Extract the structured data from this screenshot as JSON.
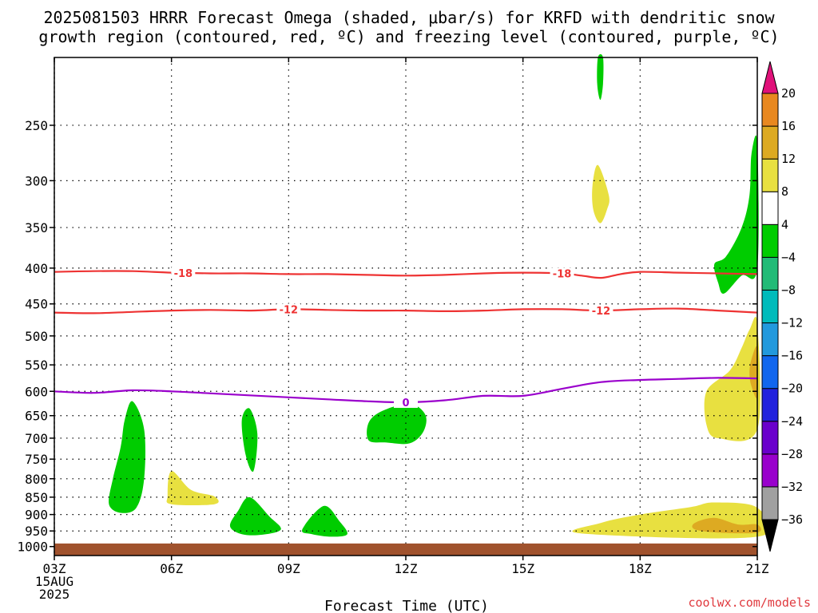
{
  "chart_data": {
    "type": "heatmap",
    "title_lines": [
      "2025081503 HRRR Forecast Omega (shaded, μbar/s) for KRFD with dendritic snow",
      "growth region (contoured, red, ºC) and freezing level (contoured, purple, ºC)"
    ],
    "xlabel": "Forecast Time (UTC)",
    "credit": "coolwx.com/models",
    "x_start_label_lines": [
      "03Z",
      "15AUG",
      "2025"
    ],
    "x_ticks": [
      {
        "hour": 3,
        "label": "03Z"
      },
      {
        "hour": 6,
        "label": "06Z"
      },
      {
        "hour": 9,
        "label": "09Z"
      },
      {
        "hour": 12,
        "label": "12Z"
      },
      {
        "hour": 15,
        "label": "15Z"
      },
      {
        "hour": 18,
        "label": "18Z"
      },
      {
        "hour": 21,
        "label": "21Z"
      }
    ],
    "xlim": [
      3,
      21
    ],
    "y_ticks": [
      250,
      300,
      350,
      400,
      450,
      500,
      550,
      600,
      650,
      700,
      750,
      800,
      850,
      900,
      950,
      1000
    ],
    "ylim_hPa": [
      200,
      1030
    ],
    "y_scale": "log",
    "grid": true,
    "ground_level_hPa": 990,
    "colorbar": {
      "levels": [
        -36,
        -32,
        -28,
        -24,
        -20,
        -16,
        -12,
        -8,
        -4,
        4,
        8,
        12,
        16,
        20
      ],
      "colors": [
        "#a0a0a0",
        "#9900cc",
        "#6a00cc",
        "#2222dd",
        "#1166ee",
        "#2299dd",
        "#00bbbb",
        "#22bb77",
        "#00cc00",
        "#ffffff",
        "#e8e040",
        "#ddaa22",
        "#e88820",
        "#ee3333",
        "#e0117a"
      ]
    },
    "contours": [
      {
        "name": "-18",
        "color": "#ee3333",
        "label": "-18",
        "label_hours": [
          6.3,
          16.0
        ],
        "points": [
          [
            3,
            405
          ],
          [
            4,
            404
          ],
          [
            5,
            404
          ],
          [
            6,
            406
          ],
          [
            7,
            407
          ],
          [
            8,
            407
          ],
          [
            9,
            408
          ],
          [
            10,
            408
          ],
          [
            11,
            409
          ],
          [
            12,
            410
          ],
          [
            13,
            409
          ],
          [
            14,
            407
          ],
          [
            15,
            406
          ],
          [
            16,
            407
          ],
          [
            16.5,
            410
          ],
          [
            17,
            413
          ],
          [
            17.5,
            408
          ],
          [
            18,
            405
          ],
          [
            19,
            406
          ],
          [
            20,
            407
          ],
          [
            21,
            408
          ]
        ]
      },
      {
        "name": "-12",
        "color": "#ee3333",
        "label": "-12",
        "label_hours": [
          9.0,
          17.0
        ],
        "points": [
          [
            3,
            463
          ],
          [
            4,
            464
          ],
          [
            5,
            462
          ],
          [
            6,
            460
          ],
          [
            7,
            459
          ],
          [
            8,
            460
          ],
          [
            9,
            458
          ],
          [
            10,
            459
          ],
          [
            11,
            460
          ],
          [
            12,
            460
          ],
          [
            13,
            461
          ],
          [
            14,
            460
          ],
          [
            15,
            458
          ],
          [
            16,
            458
          ],
          [
            17,
            460
          ],
          [
            18,
            458
          ],
          [
            19,
            457
          ],
          [
            20,
            460
          ],
          [
            21,
            463
          ]
        ]
      },
      {
        "name": "0",
        "color": "#9a00cc",
        "label": "0",
        "label_hours": [
          12.0
        ],
        "points": [
          [
            3,
            600
          ],
          [
            4,
            603
          ],
          [
            5,
            598
          ],
          [
            6,
            600
          ],
          [
            7,
            604
          ],
          [
            8,
            608
          ],
          [
            9,
            612
          ],
          [
            10,
            616
          ],
          [
            11,
            620
          ],
          [
            12,
            622
          ],
          [
            13,
            618
          ],
          [
            14,
            609
          ],
          [
            15,
            609
          ],
          [
            16,
            595
          ],
          [
            17,
            582
          ],
          [
            18,
            578
          ],
          [
            19,
            576
          ],
          [
            20,
            574
          ],
          [
            21,
            575
          ]
        ]
      }
    ],
    "omega_regions": [
      {
        "value": "-8 to -4",
        "color": "#00cc00",
        "points": [
          [
            5.0,
            620
          ],
          [
            5.3,
            680
          ],
          [
            5.3,
            800
          ],
          [
            5.1,
            880
          ],
          [
            4.7,
            895
          ],
          [
            4.4,
            870
          ],
          [
            4.5,
            800
          ],
          [
            4.7,
            720
          ],
          [
            4.8,
            660
          ]
        ]
      },
      {
        "value": "4 to 8",
        "color": "#e8e040",
        "points": [
          [
            6.0,
            780
          ],
          [
            6.5,
            830
          ],
          [
            7.1,
            848
          ],
          [
            7.1,
            870
          ],
          [
            6.0,
            870
          ],
          [
            5.9,
            845
          ]
        ]
      },
      {
        "value": "-8 to -4",
        "color": "#00cc00",
        "points": [
          [
            8.0,
            635
          ],
          [
            8.2,
            690
          ],
          [
            8.1,
            780
          ],
          [
            7.9,
            740
          ],
          [
            7.8,
            660
          ]
        ]
      },
      {
        "value": "-8 to -4",
        "color": "#00cc00",
        "points": [
          [
            8.0,
            850
          ],
          [
            8.5,
            905
          ],
          [
            8.8,
            945
          ],
          [
            8.3,
            962
          ],
          [
            7.8,
            960
          ],
          [
            7.5,
            935
          ],
          [
            7.7,
            890
          ]
        ]
      },
      {
        "value": "-8 to -4",
        "color": "#00cc00",
        "points": [
          [
            9.9,
            875
          ],
          [
            10.3,
            920
          ],
          [
            10.5,
            960
          ],
          [
            10.1,
            968
          ],
          [
            9.6,
            960
          ],
          [
            9.35,
            945
          ]
        ]
      },
      {
        "value": "-8 to -4",
        "color": "#00cc00",
        "points": [
          [
            12.1,
            625
          ],
          [
            12.5,
            648
          ],
          [
            12.45,
            685
          ],
          [
            12.1,
            712
          ],
          [
            11.5,
            710
          ],
          [
            11.05,
            705
          ],
          [
            11.05,
            665
          ],
          [
            11.4,
            640
          ]
        ]
      },
      {
        "value": "-8 to -4",
        "color": "#00cc00",
        "points": [
          [
            16.92,
            200
          ],
          [
            17.05,
            200
          ],
          [
            17.05,
            218
          ],
          [
            16.98,
            230
          ],
          [
            16.9,
            218
          ]
        ]
      },
      {
        "value": "4 to 8",
        "color": "#e8e040",
        "points": [
          [
            16.92,
            285
          ],
          [
            17.2,
            315
          ],
          [
            17.15,
            330
          ],
          [
            16.98,
            345
          ],
          [
            16.8,
            330
          ],
          [
            16.78,
            305
          ]
        ]
      },
      {
        "value": "-8 to -4",
        "color": "#00cc00",
        "points": [
          [
            20.85,
            275
          ],
          [
            21,
            265
          ],
          [
            21,
            400
          ],
          [
            20.6,
            410
          ],
          [
            20.15,
            435
          ],
          [
            20.0,
            420
          ],
          [
            19.9,
            395
          ],
          [
            20.2,
            385
          ],
          [
            20.6,
            350
          ],
          [
            20.8,
            315
          ]
        ]
      },
      {
        "value": "4 to 8",
        "color": "#e8e040",
        "points": [
          [
            20.8,
            490
          ],
          [
            21,
            480
          ],
          [
            21,
            680
          ],
          [
            20.0,
            700
          ],
          [
            19.7,
            670
          ],
          [
            19.7,
            600
          ],
          [
            20.3,
            560
          ],
          [
            20.6,
            520
          ]
        ]
      },
      {
        "value": "8 to 12",
        "color": "#ddaa22",
        "points": [
          [
            20.85,
            540
          ],
          [
            21,
            520
          ],
          [
            21,
            610
          ],
          [
            20.85,
            590
          ],
          [
            20.8,
            565
          ]
        ]
      },
      {
        "value": "4 to 8",
        "color": "#e8e040",
        "points": [
          [
            19.9,
            865
          ],
          [
            21,
            880
          ],
          [
            21,
            968
          ],
          [
            16.5,
            958
          ],
          [
            17.0,
            925
          ],
          [
            18.0,
            900
          ],
          [
            19.3,
            878
          ]
        ]
      },
      {
        "value": "8 to 12",
        "color": "#ddaa22",
        "points": [
          [
            19.9,
            910
          ],
          [
            20.5,
            930
          ],
          [
            21,
            930
          ],
          [
            21,
            955
          ],
          [
            20.0,
            955
          ],
          [
            19.4,
            945
          ],
          [
            19.4,
            925
          ]
        ]
      }
    ]
  }
}
